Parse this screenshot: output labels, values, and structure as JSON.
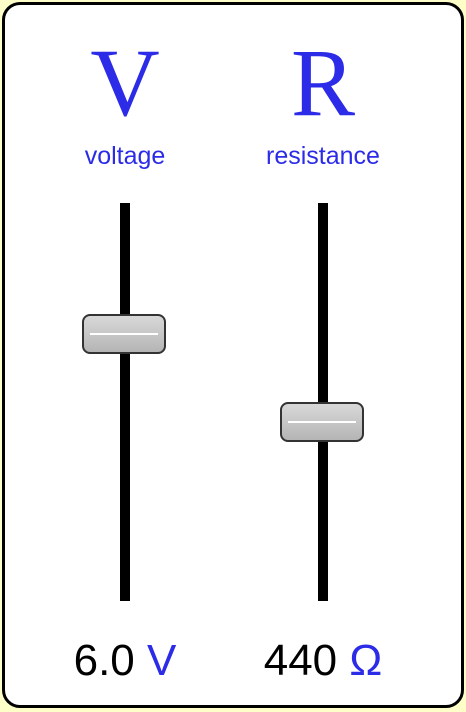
{
  "voltage": {
    "symbol": "V",
    "label": "voltage",
    "value": "6.0",
    "unit": "V",
    "slider_fraction": 0.67
  },
  "resistance": {
    "symbol": "R",
    "label": "resistance",
    "value": "440",
    "unit": "Ω",
    "slider_fraction": 0.45
  },
  "colors": {
    "accent": "#2b2be8",
    "background": "#feffc8",
    "panel": "#ffffff",
    "track": "#000000",
    "thumb": "#c8c8c8"
  }
}
